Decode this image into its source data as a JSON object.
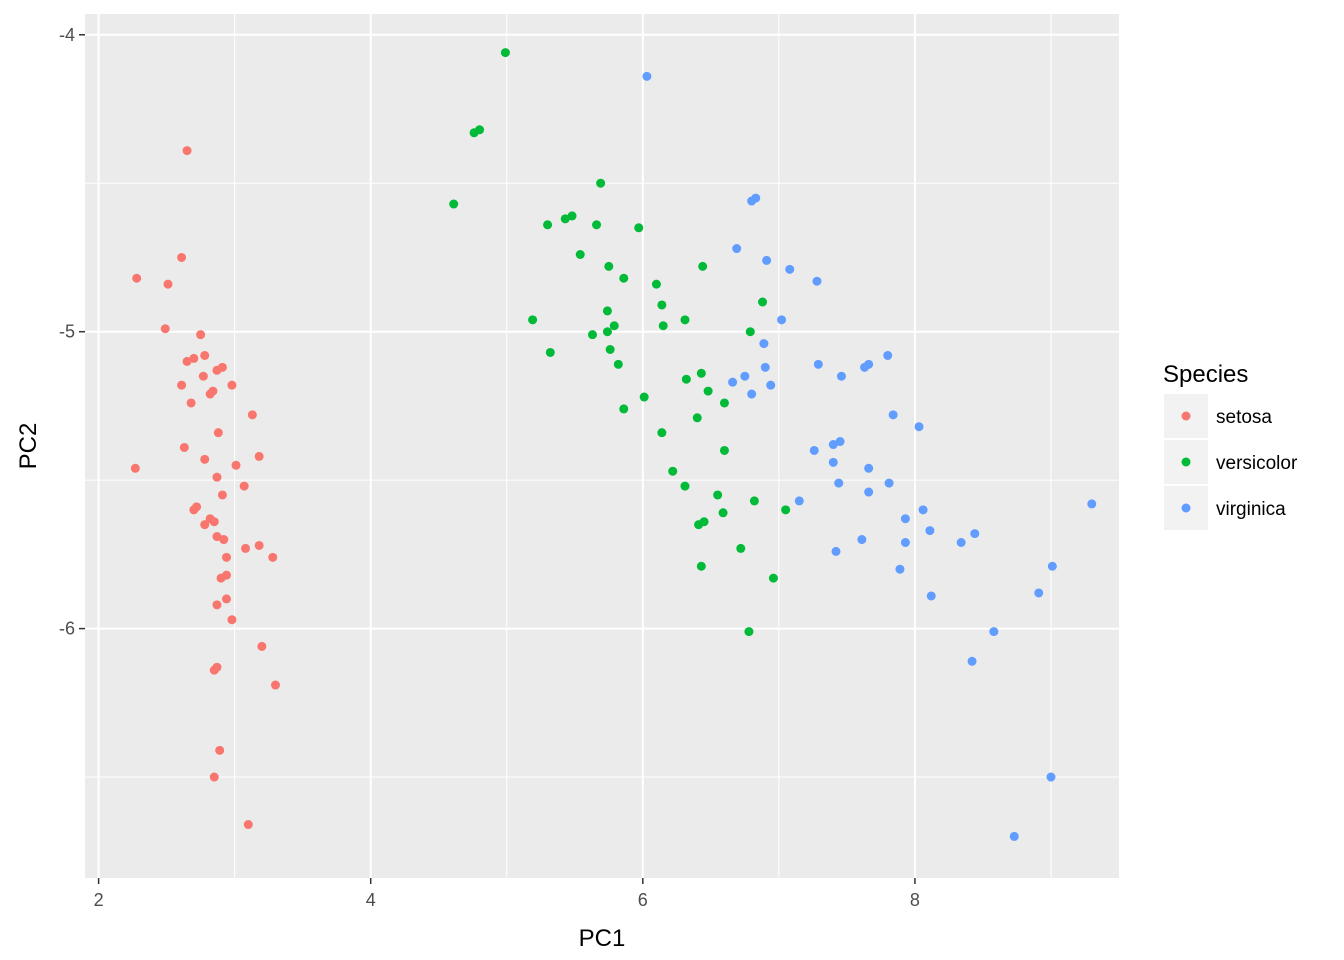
{
  "chart_data": {
    "type": "scatter",
    "title": "",
    "xlabel": "PC1",
    "ylabel": "PC2",
    "xlim": [
      1.9,
      9.5
    ],
    "ylim": [
      -6.84,
      -3.93
    ],
    "xticks": [
      2,
      4,
      6,
      8
    ],
    "yticks": [
      -6,
      -5,
      -4
    ],
    "x_tick_labels": [
      "2",
      "4",
      "6",
      "8"
    ],
    "y_tick_labels": [
      "-6",
      "-5",
      "-4"
    ],
    "grid": true,
    "legend": {
      "title": "Species",
      "position": "right"
    },
    "series": [
      {
        "name": "setosa",
        "color": "#F8766D",
        "points": [
          [
            2.28,
            -4.82
          ],
          [
            2.51,
            -4.84
          ],
          [
            2.61,
            -4.75
          ],
          [
            2.65,
            -4.39
          ],
          [
            2.49,
            -4.99
          ],
          [
            2.27,
            -5.46
          ],
          [
            2.75,
            -5.01
          ],
          [
            2.65,
            -5.1
          ],
          [
            2.7,
            -5.09
          ],
          [
            2.78,
            -5.08
          ],
          [
            2.87,
            -5.13
          ],
          [
            2.91,
            -5.12
          ],
          [
            2.77,
            -5.15
          ],
          [
            2.61,
            -5.18
          ],
          [
            2.84,
            -5.2
          ],
          [
            2.82,
            -5.21
          ],
          [
            2.98,
            -5.18
          ],
          [
            2.68,
            -5.24
          ],
          [
            3.13,
            -5.28
          ],
          [
            2.88,
            -5.34
          ],
          [
            2.63,
            -5.39
          ],
          [
            2.78,
            -5.43
          ],
          [
            3.18,
            -5.42
          ],
          [
            3.01,
            -5.45
          ],
          [
            2.87,
            -5.49
          ],
          [
            3.07,
            -5.52
          ],
          [
            2.91,
            -5.55
          ],
          [
            2.72,
            -5.59
          ],
          [
            2.7,
            -5.6
          ],
          [
            2.82,
            -5.63
          ],
          [
            2.78,
            -5.65
          ],
          [
            2.85,
            -5.64
          ],
          [
            2.87,
            -5.69
          ],
          [
            2.92,
            -5.7
          ],
          [
            3.18,
            -5.72
          ],
          [
            3.08,
            -5.73
          ],
          [
            2.94,
            -5.76
          ],
          [
            3.28,
            -5.76
          ],
          [
            2.94,
            -5.82
          ],
          [
            2.9,
            -5.83
          ],
          [
            2.94,
            -5.9
          ],
          [
            2.87,
            -5.92
          ],
          [
            2.98,
            -5.97
          ],
          [
            3.2,
            -6.06
          ],
          [
            2.87,
            -6.13
          ],
          [
            2.85,
            -6.14
          ],
          [
            3.3,
            -6.19
          ],
          [
            2.89,
            -6.41
          ],
          [
            2.85,
            -6.5
          ],
          [
            3.1,
            -6.66
          ]
        ]
      },
      {
        "name": "versicolor",
        "color": "#00BA38",
        "points": [
          [
            4.99,
            -4.06
          ],
          [
            4.8,
            -4.32
          ],
          [
            4.76,
            -4.33
          ],
          [
            5.69,
            -4.5
          ],
          [
            4.61,
            -4.57
          ],
          [
            5.48,
            -4.61
          ],
          [
            5.43,
            -4.62
          ],
          [
            5.3,
            -4.64
          ],
          [
            5.66,
            -4.64
          ],
          [
            5.97,
            -4.65
          ],
          [
            5.54,
            -4.74
          ],
          [
            5.75,
            -4.78
          ],
          [
            6.44,
            -4.78
          ],
          [
            5.86,
            -4.82
          ],
          [
            6.1,
            -4.84
          ],
          [
            6.14,
            -4.91
          ],
          [
            6.88,
            -4.9
          ],
          [
            5.74,
            -4.93
          ],
          [
            5.19,
            -4.96
          ],
          [
            6.31,
            -4.96
          ],
          [
            6.15,
            -4.98
          ],
          [
            5.79,
            -4.98
          ],
          [
            5.74,
            -5.0
          ],
          [
            6.79,
            -5.0
          ],
          [
            5.63,
            -5.01
          ],
          [
            5.76,
            -5.06
          ],
          [
            5.32,
            -5.07
          ],
          [
            5.82,
            -5.11
          ],
          [
            6.43,
            -5.14
          ],
          [
            6.32,
            -5.16
          ],
          [
            6.48,
            -5.2
          ],
          [
            6.01,
            -5.22
          ],
          [
            6.6,
            -5.24
          ],
          [
            5.86,
            -5.26
          ],
          [
            6.4,
            -5.29
          ],
          [
            6.14,
            -5.34
          ],
          [
            6.6,
            -5.4
          ],
          [
            6.22,
            -5.47
          ],
          [
            6.31,
            -5.52
          ],
          [
            6.55,
            -5.55
          ],
          [
            6.82,
            -5.57
          ],
          [
            7.05,
            -5.6
          ],
          [
            6.59,
            -5.61
          ],
          [
            6.45,
            -5.64
          ],
          [
            6.41,
            -5.65
          ],
          [
            6.72,
            -5.73
          ],
          [
            6.43,
            -5.79
          ],
          [
            6.96,
            -5.83
          ],
          [
            6.78,
            -6.01
          ]
        ]
      },
      {
        "name": "virginica",
        "color": "#619CFF",
        "points": [
          [
            6.03,
            -4.14
          ],
          [
            6.83,
            -4.55
          ],
          [
            6.8,
            -4.56
          ],
          [
            6.69,
            -4.72
          ],
          [
            6.91,
            -4.76
          ],
          [
            7.08,
            -4.79
          ],
          [
            7.28,
            -4.83
          ],
          [
            7.02,
            -4.96
          ],
          [
            6.89,
            -5.04
          ],
          [
            7.8,
            -5.08
          ],
          [
            7.29,
            -5.11
          ],
          [
            7.66,
            -5.11
          ],
          [
            7.63,
            -5.12
          ],
          [
            6.9,
            -5.12
          ],
          [
            6.75,
            -5.15
          ],
          [
            7.46,
            -5.15
          ],
          [
            6.66,
            -5.17
          ],
          [
            6.94,
            -5.18
          ],
          [
            6.8,
            -5.21
          ],
          [
            7.84,
            -5.28
          ],
          [
            8.03,
            -5.32
          ],
          [
            7.45,
            -5.37
          ],
          [
            7.4,
            -5.38
          ],
          [
            7.26,
            -5.4
          ],
          [
            7.4,
            -5.44
          ],
          [
            7.66,
            -5.46
          ],
          [
            7.44,
            -5.51
          ],
          [
            7.81,
            -5.51
          ],
          [
            7.66,
            -5.54
          ],
          [
            7.15,
            -5.57
          ],
          [
            9.3,
            -5.58
          ],
          [
            8.06,
            -5.6
          ],
          [
            7.93,
            -5.63
          ],
          [
            8.11,
            -5.67
          ],
          [
            8.44,
            -5.68
          ],
          [
            7.61,
            -5.7
          ],
          [
            7.93,
            -5.71
          ],
          [
            8.34,
            -5.71
          ],
          [
            7.42,
            -5.74
          ],
          [
            9.01,
            -5.79
          ],
          [
            7.89,
            -5.8
          ],
          [
            8.91,
            -5.88
          ],
          [
            8.12,
            -5.89
          ],
          [
            8.58,
            -6.01
          ],
          [
            8.42,
            -6.11
          ],
          [
            9.0,
            -6.5
          ],
          [
            8.73,
            -6.7
          ]
        ]
      }
    ]
  }
}
